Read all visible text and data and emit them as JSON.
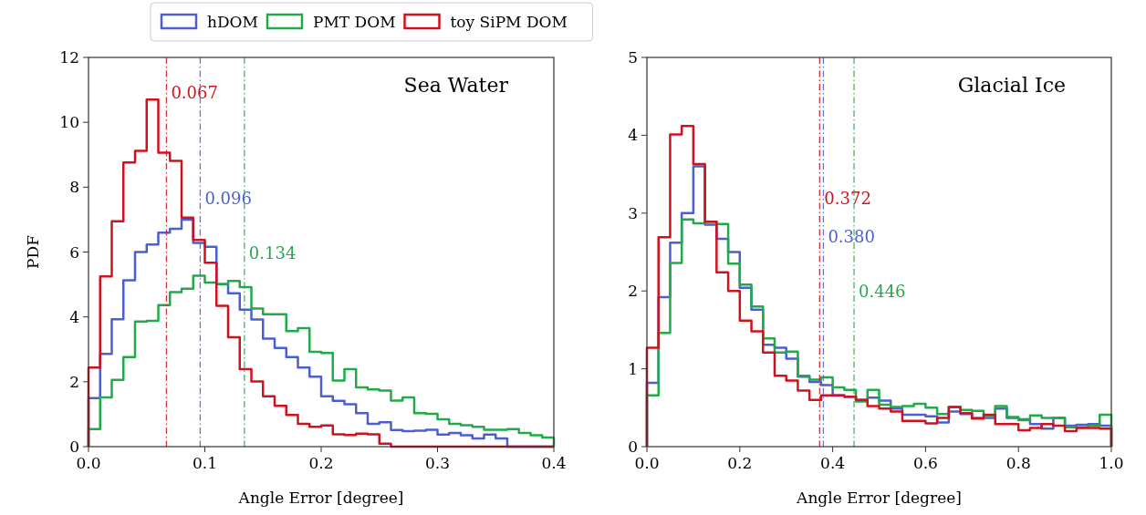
{
  "chart_data": [
    {
      "type": "histogram",
      "title": "Sea Water",
      "xlabel": "Angle Error [degree]",
      "ylabel": "PDF",
      "xlim": [
        0,
        0.4
      ],
      "xticks": [
        {
          "value": 0,
          "label": "0.0"
        },
        {
          "value": 0.1,
          "label": "0.1"
        },
        {
          "value": 0.2,
          "label": "0.2"
        },
        {
          "value": 0.3,
          "label": "0.3"
        },
        {
          "value": 0.4,
          "label": "0.4"
        }
      ],
      "ylim": [
        0,
        12
      ],
      "yticks": [
        0,
        2,
        4,
        6,
        8,
        10,
        12
      ],
      "legend": "top",
      "grid": false,
      "bins": [
        0,
        0.01,
        0.02,
        0.03,
        0.04,
        0.05,
        0.06,
        0.07,
        0.08,
        0.09,
        0.1,
        0.11,
        0.12,
        0.13,
        0.14,
        0.15,
        0.16,
        0.17,
        0.18,
        0.19,
        0.2,
        0.21,
        0.22,
        0.23,
        0.24,
        0.25,
        0.26,
        0.27,
        0.28,
        0.29,
        0.3,
        0.31,
        0.32,
        0.33,
        0.34,
        0.35,
        0.36,
        0.37,
        0.38,
        0.39,
        0.4
      ],
      "series": [
        {
          "name": "hDOM",
          "color": "#4c5fce",
          "values": [
            1.5,
            2.86,
            3.93,
            5.13,
            6.0,
            6.23,
            6.6,
            6.72,
            7.0,
            6.28,
            6.16,
            5.01,
            4.73,
            4.22,
            3.92,
            3.33,
            3.04,
            2.76,
            2.44,
            2.16,
            1.55,
            1.41,
            1.31,
            1.03,
            0.7,
            0.75,
            0.51,
            0.48,
            0.49,
            0.52,
            0.37,
            0.42,
            0.35,
            0.25,
            0.37,
            0.25,
            0,
            0,
            0,
            0
          ]
        },
        {
          "name": "PMT DOM",
          "color": "#22aa4a",
          "values": [
            0.54,
            1.52,
            2.06,
            2.76,
            3.86,
            3.88,
            4.36,
            4.76,
            4.87,
            5.27,
            5.06,
            5.01,
            5.11,
            4.92,
            4.26,
            4.08,
            4.08,
            3.56,
            3.65,
            2.92,
            2.89,
            2.04,
            2.39,
            1.83,
            1.76,
            1.73,
            1.42,
            1.52,
            1.03,
            1.01,
            0.84,
            0.7,
            0.66,
            0.61,
            0.52,
            0.52,
            0.54,
            0.42,
            0.35,
            0.28
          ]
        },
        {
          "name": "toy SiPM DOM",
          "color": "#d0121f",
          "values": [
            2.44,
            5.25,
            6.95,
            8.76,
            9.12,
            10.7,
            9.06,
            8.81,
            7.06,
            6.37,
            5.67,
            4.34,
            3.37,
            2.39,
            2.01,
            1.55,
            1.26,
            0.98,
            0.7,
            0.61,
            0.65,
            0.38,
            0.36,
            0.4,
            0.38,
            0.09,
            0,
            0,
            0,
            0,
            0,
            0,
            0,
            0,
            0,
            0,
            0,
            0,
            0,
            0
          ]
        }
      ],
      "ref_lines": [
        {
          "axis": "x",
          "value": 0.067,
          "label": "0.067",
          "color": "#d0121f"
        },
        {
          "axis": "x",
          "value": 0.096,
          "label": "0.096",
          "color": "#4c5fce"
        },
        {
          "axis": "x",
          "value": 0.134,
          "label": "0.134",
          "color": "#22aa4a"
        }
      ]
    },
    {
      "type": "histogram",
      "title": "Glacial Ice",
      "xlabel": "Angle Error [degree]",
      "xlim": [
        0,
        1
      ],
      "xticks": [
        {
          "value": 0,
          "label": "0.0"
        },
        {
          "value": 0.2,
          "label": "0.2"
        },
        {
          "value": 0.4,
          "label": "0.4"
        },
        {
          "value": 0.6,
          "label": "0.6"
        },
        {
          "value": 0.8,
          "label": "0.8"
        },
        {
          "value": 1,
          "label": "1.0"
        }
      ],
      "ylim": [
        0,
        5
      ],
      "yticks": [
        0,
        1,
        2,
        3,
        4,
        5
      ],
      "grid": false,
      "bins": [
        0,
        0.025,
        0.05,
        0.075,
        0.1,
        0.125,
        0.15,
        0.175,
        0.2,
        0.225,
        0.25,
        0.275,
        0.3,
        0.325,
        0.35,
        0.375,
        0.4,
        0.425,
        0.45,
        0.475,
        0.5,
        0.525,
        0.55,
        0.575,
        0.6,
        0.625,
        0.65,
        0.675,
        0.7,
        0.725,
        0.75,
        0.775,
        0.8,
        0.825,
        0.85,
        0.875,
        0.9,
        0.925,
        0.95,
        0.975,
        1
      ],
      "series": [
        {
          "color": "#4c5fce",
          "values": [
            0.82,
            1.92,
            2.62,
            3.0,
            3.6,
            2.85,
            2.67,
            2.5,
            2.04,
            1.76,
            1.31,
            1.27,
            1.13,
            0.9,
            0.83,
            0.79,
            0.66,
            0.64,
            0.6,
            0.63,
            0.59,
            0.49,
            0.41,
            0.41,
            0.39,
            0.31,
            0.45,
            0.42,
            0.37,
            0.37,
            0.49,
            0.37,
            0.35,
            0.29,
            0.23,
            0.37,
            0.27,
            0.28,
            0.29,
            0.27
          ]
        },
        {
          "color": "#22aa4a",
          "values": [
            0.66,
            1.46,
            2.36,
            2.92,
            2.87,
            2.89,
            2.86,
            2.35,
            2.08,
            1.8,
            1.39,
            1.21,
            1.22,
            0.91,
            0.86,
            0.89,
            0.76,
            0.73,
            0.58,
            0.73,
            0.54,
            0.51,
            0.52,
            0.55,
            0.5,
            0.42,
            0.51,
            0.47,
            0.46,
            0.4,
            0.52,
            0.38,
            0.34,
            0.4,
            0.37,
            0.37,
            0.25,
            0.25,
            0.27,
            0.41
          ]
        },
        {
          "color": "#d0121f",
          "values": [
            1.27,
            2.69,
            4.01,
            4.12,
            3.63,
            2.89,
            2.24,
            2.0,
            1.62,
            1.48,
            1.21,
            0.91,
            0.85,
            0.72,
            0.6,
            0.66,
            0.66,
            0.64,
            0.6,
            0.52,
            0.49,
            0.45,
            0.33,
            0.33,
            0.3,
            0.37,
            0.51,
            0.43,
            0.36,
            0.41,
            0.29,
            0.29,
            0.21,
            0.24,
            0.29,
            0.27,
            0.2,
            0.24,
            0.24,
            0.23
          ]
        }
      ],
      "ref_lines": [
        {
          "axis": "x",
          "value": 0.372,
          "label": "0.372",
          "color": "#d0121f"
        },
        {
          "axis": "x",
          "value": 0.38,
          "label": "0.380",
          "color": "#4c5fce"
        },
        {
          "axis": "x",
          "value": 0.446,
          "label": "0.446",
          "color": "#22aa4a"
        }
      ]
    }
  ]
}
